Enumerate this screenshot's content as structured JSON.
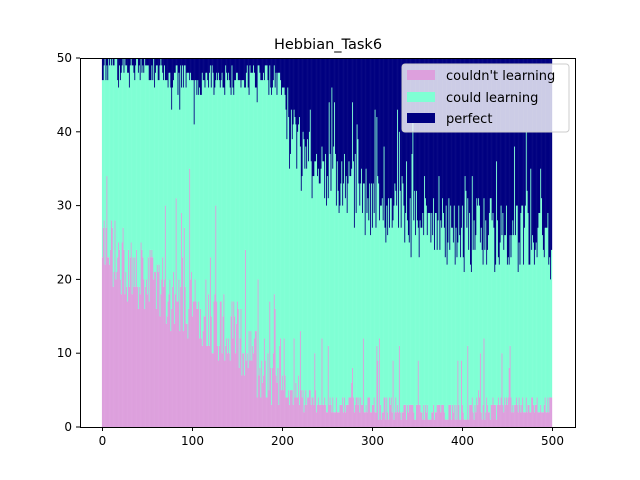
{
  "chart_data": {
    "type": "bar",
    "stacked": true,
    "title": "Hebbian_Task6",
    "xlabel": "",
    "ylabel": "",
    "xlim": [
      -25,
      525
    ],
    "ylim": [
      0,
      50
    ],
    "x_ticks": [
      0,
      100,
      200,
      300,
      400,
      500
    ],
    "y_ticks": [
      0,
      10,
      20,
      30,
      40,
      50
    ],
    "bar_count": 500,
    "total_per_bar": 50,
    "legend_position": "upper right",
    "grid": false,
    "series": [
      {
        "name": "couldn't learning",
        "color": "#dda0dd"
      },
      {
        "name": "could learning",
        "color": "#7fffd4"
      },
      {
        "name": "perfect",
        "color": "#000080"
      }
    ],
    "samples": [
      {
        "x": 0,
        "couldnt": 25,
        "perfect": 1
      },
      {
        "x": 50,
        "couldnt": 19,
        "perfect": 1
      },
      {
        "x": 100,
        "couldnt": 17,
        "perfect": 3
      },
      {
        "x": 150,
        "couldnt": 12,
        "perfect": 2
      },
      {
        "x": 200,
        "couldnt": 6,
        "perfect": 3
      },
      {
        "x": 210,
        "couldnt": 4,
        "perfect": 12
      },
      {
        "x": 250,
        "couldnt": 3,
        "perfect": 16
      },
      {
        "x": 300,
        "couldnt": 3,
        "perfect": 20
      },
      {
        "x": 350,
        "couldnt": 2,
        "perfect": 22
      },
      {
        "x": 400,
        "couldnt": 2,
        "perfect": 24
      },
      {
        "x": 450,
        "couldnt": 3,
        "perfect": 24
      },
      {
        "x": 500,
        "couldnt": 3,
        "perfect": 25
      }
    ]
  }
}
